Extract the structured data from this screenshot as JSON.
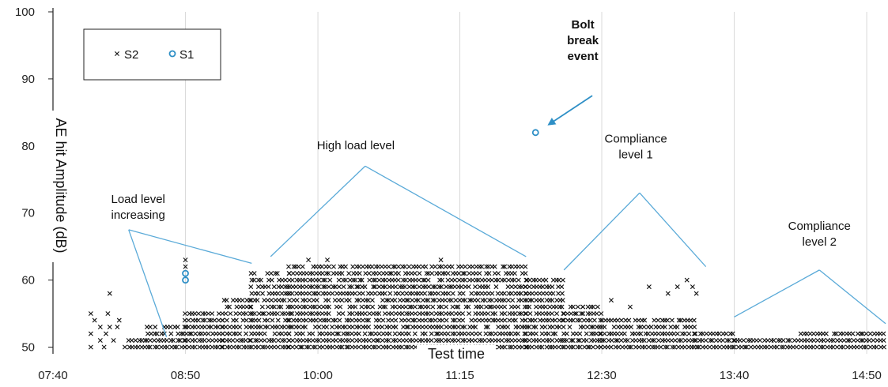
{
  "chart_data": {
    "type": "scatter",
    "xlabel": "Test time",
    "ylabel": "AE hit Amplitude (dB)",
    "x_unit": "time of day",
    "xlim": [
      "07:40",
      "15:00"
    ],
    "ylim": [
      49,
      100
    ],
    "x_ticks": [
      "07:40",
      "08:50",
      "10:00",
      "11:15",
      "12:30",
      "13:40",
      "14:50"
    ],
    "y_ticks": [
      50,
      60,
      70,
      80,
      90,
      100
    ],
    "grid": "vertical",
    "legend": {
      "position": "top-left",
      "entries": [
        {
          "label": "S2",
          "marker": "x",
          "color": "#111111"
        },
        {
          "label": "S1",
          "marker": "o",
          "color": "#2e8fc6"
        }
      ]
    },
    "series": [
      {
        "name": "S2",
        "marker": "x",
        "color": "#111111",
        "points": [
          [
            "08:00",
            55
          ],
          [
            "08:00",
            52
          ],
          [
            "08:00",
            50
          ],
          [
            "08:02",
            54
          ],
          [
            "08:05",
            51
          ],
          [
            "08:05",
            53
          ],
          [
            "08:07",
            50
          ],
          [
            "08:08",
            52
          ],
          [
            "08:09",
            55
          ],
          [
            "08:10",
            58
          ],
          [
            "08:10",
            53
          ],
          [
            "08:12",
            51
          ],
          [
            "08:14",
            53
          ],
          [
            "08:15",
            54
          ],
          [
            "08:18",
            50
          ],
          [
            "08:50",
            63
          ],
          [
            "08:50",
            62
          ],
          [
            "11:05",
            63
          ],
          [
            "10:05",
            63
          ],
          [
            "09:55",
            63
          ],
          [
            "12:55",
            59
          ],
          [
            "13:10",
            59
          ],
          [
            "13:15",
            60
          ],
          [
            "13:18",
            59
          ],
          [
            "13:20",
            58
          ],
          [
            "13:05",
            58
          ],
          [
            "12:35",
            57
          ],
          [
            "12:45",
            56
          ],
          [
            "12:20",
            56
          ]
        ],
        "bands": [
          {
            "from": "08:20",
            "to": "08:30",
            "min": 50,
            "max": 51
          },
          {
            "from": "08:30",
            "to": "08:50",
            "min": 50,
            "max": 53
          },
          {
            "from": "08:50",
            "to": "09:10",
            "min": 50,
            "max": 55
          },
          {
            "from": "09:10",
            "to": "09:25",
            "min": 50,
            "max": 57
          },
          {
            "from": "09:25",
            "to": "09:45",
            "min": 50,
            "max": 61
          },
          {
            "from": "09:45",
            "to": "11:50",
            "min": 50,
            "max": 62
          },
          {
            "from": "11:50",
            "to": "12:10",
            "min": 50,
            "max": 60
          },
          {
            "from": "12:10",
            "to": "12:30",
            "min": 50,
            "max": 56
          },
          {
            "from": "12:30",
            "to": "13:20",
            "min": 50,
            "max": 54
          },
          {
            "from": "13:20",
            "to": "13:40",
            "min": 50,
            "max": 52
          },
          {
            "from": "13:40",
            "to": "14:15",
            "min": 50,
            "max": 51
          },
          {
            "from": "14:15",
            "to": "15:00",
            "min": 50,
            "max": 52
          }
        ]
      },
      {
        "name": "S1",
        "marker": "o",
        "color": "#2e8fc6",
        "points": [
          [
            "08:50",
            61
          ],
          [
            "08:50",
            60
          ],
          [
            "11:55",
            82
          ]
        ]
      }
    ],
    "annotations": [
      {
        "id": "load-level",
        "lines": [
          "Load level",
          "increasing"
        ],
        "bold": false,
        "text_at": [
          "08:25",
          71.5
        ],
        "anchor": "middle",
        "leaders": [
          [
            [
              "08:20",
              67.5
            ],
            [
              "09:25",
              62.5
            ]
          ],
          [
            [
              "08:20",
              67.5
            ],
            [
              "08:40",
              51.5
            ]
          ]
        ],
        "arrow": false
      },
      {
        "id": "high-load",
        "lines": [
          "High load level"
        ],
        "bold": false,
        "text_at": [
          "10:20",
          79.5
        ],
        "anchor": "middle",
        "leaders": [
          [
            [
              "10:25",
              77
            ],
            [
              "09:35",
              63.5
            ]
          ],
          [
            [
              "10:25",
              77
            ],
            [
              "11:50",
              63.5
            ]
          ]
        ],
        "arrow": false
      },
      {
        "id": "compliance-1",
        "lines": [
          "Compliance",
          "level 1"
        ],
        "bold": false,
        "text_at": [
          "12:48",
          80.5
        ],
        "anchor": "middle",
        "leaders": [
          [
            [
              "12:50",
              73
            ],
            [
              "12:10",
              61.5
            ]
          ],
          [
            [
              "12:50",
              73
            ],
            [
              "13:25",
              62
            ]
          ]
        ],
        "arrow": false
      },
      {
        "id": "compliance-2",
        "lines": [
          "Compliance",
          "level 2"
        ],
        "bold": false,
        "text_at": [
          "14:25",
          67.5
        ],
        "anchor": "middle",
        "leaders": [
          [
            [
              "14:25",
              61.5
            ],
            [
              "13:40",
              54.5
            ]
          ],
          [
            [
              "14:25",
              61.5
            ],
            [
              "15:00",
              53.5
            ]
          ]
        ],
        "arrow": false
      },
      {
        "id": "bolt-break",
        "lines": [
          "Bolt",
          "break",
          "event"
        ],
        "bold": true,
        "text_at": [
          "12:20",
          97.5
        ],
        "anchor": "middle",
        "leaders": [
          [
            [
              "12:25",
              87.5
            ],
            [
              "12:02",
              83.2
            ]
          ]
        ],
        "arrow": true
      }
    ]
  }
}
